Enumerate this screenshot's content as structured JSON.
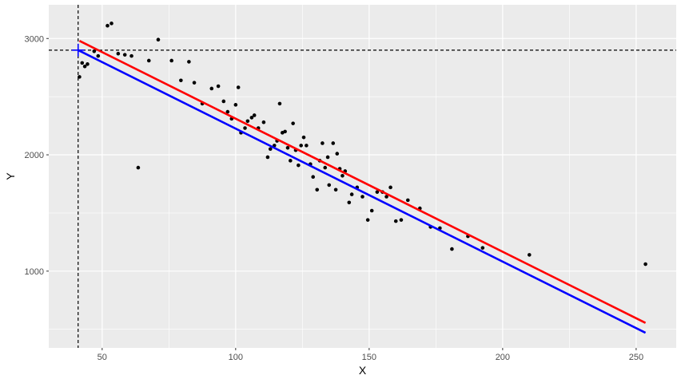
{
  "chart_data": {
    "type": "scatter",
    "title": "",
    "xlabel": "X",
    "ylabel": "Y",
    "xlim": [
      30,
      265
    ],
    "ylim": [
      340,
      3290
    ],
    "grid": true,
    "legend": "none",
    "background_color": "#ebebeb",
    "gridline_color": "#ffffff",
    "x_ticks": [
      50,
      100,
      150,
      200,
      250
    ],
    "x_tick_labels": [
      "50",
      "100",
      "150",
      "200",
      "250"
    ],
    "y_ticks": [
      1000,
      2000,
      3000
    ],
    "y_tick_labels": [
      "1000",
      "2000",
      "3000"
    ],
    "points": [
      [
        41.5,
        2670
      ],
      [
        42.5,
        2790
      ],
      [
        43.5,
        2760
      ],
      [
        44.5,
        2780
      ],
      [
        47,
        2890
      ],
      [
        48.5,
        2850
      ],
      [
        52,
        3110
      ],
      [
        53.5,
        3130
      ],
      [
        56,
        2870
      ],
      [
        58.5,
        2860
      ],
      [
        61,
        2850
      ],
      [
        63.5,
        1890
      ],
      [
        67.5,
        2810
      ],
      [
        71,
        2990
      ],
      [
        76,
        2810
      ],
      [
        79.5,
        2640
      ],
      [
        82.5,
        2800
      ],
      [
        84.5,
        2620
      ],
      [
        87.5,
        2440
      ],
      [
        91,
        2570
      ],
      [
        93.5,
        2590
      ],
      [
        95.5,
        2460
      ],
      [
        97,
        2370
      ],
      [
        98.5,
        2310
      ],
      [
        100,
        2430
      ],
      [
        101,
        2580
      ],
      [
        102,
        2190
      ],
      [
        103.5,
        2230
      ],
      [
        104.5,
        2290
      ],
      [
        106,
        2320
      ],
      [
        107,
        2340
      ],
      [
        108.5,
        2230
      ],
      [
        110.5,
        2280
      ],
      [
        112,
        1980
      ],
      [
        113,
        2050
      ],
      [
        114.5,
        2080
      ],
      [
        115.5,
        2120
      ],
      [
        116.5,
        2440
      ],
      [
        117.5,
        2190
      ],
      [
        118.5,
        2200
      ],
      [
        119.5,
        2060
      ],
      [
        120.5,
        1950
      ],
      [
        121.5,
        2270
      ],
      [
        122.5,
        2040
      ],
      [
        123.5,
        1910
      ],
      [
        124.5,
        2080
      ],
      [
        125.5,
        2150
      ],
      [
        126.5,
        2080
      ],
      [
        128,
        1920
      ],
      [
        129,
        1810
      ],
      [
        130.5,
        1700
      ],
      [
        131.5,
        1950
      ],
      [
        132.5,
        2100
      ],
      [
        133.5,
        1890
      ],
      [
        134.5,
        1980
      ],
      [
        135,
        1740
      ],
      [
        136.5,
        2100
      ],
      [
        137.5,
        1700
      ],
      [
        138,
        2010
      ],
      [
        139,
        1880
      ],
      [
        140,
        1820
      ],
      [
        141,
        1860
      ],
      [
        142.5,
        1590
      ],
      [
        143.5,
        1660
      ],
      [
        145.5,
        1720
      ],
      [
        147.5,
        1640
      ],
      [
        149.5,
        1440
      ],
      [
        151,
        1520
      ],
      [
        153,
        1680
      ],
      [
        155,
        1680
      ],
      [
        156.5,
        1640
      ],
      [
        158,
        1720
      ],
      [
        160,
        1430
      ],
      [
        162,
        1440
      ],
      [
        164.5,
        1610
      ],
      [
        169,
        1540
      ],
      [
        173,
        1380
      ],
      [
        176.5,
        1370
      ],
      [
        181,
        1190
      ],
      [
        187,
        1300
      ],
      [
        192.5,
        1200
      ],
      [
        210,
        1140
      ],
      [
        253.5,
        1060
      ]
    ],
    "lines": [
      {
        "color": "#ff0000",
        "x": [
          41.5,
          253.5
        ],
        "y": [
          2980,
          555
        ]
      },
      {
        "color": "#0000ff",
        "x": [
          41,
          253.5
        ],
        "y": [
          2900,
          470
        ]
      }
    ],
    "reference_lines": {
      "vline_x": 41,
      "hline_y": 2900,
      "style": "dashed",
      "color": "#000000"
    },
    "crosshair_marker": {
      "x": 41,
      "y": 2900,
      "color": "#0000ff",
      "icon": "plus-cross"
    }
  }
}
